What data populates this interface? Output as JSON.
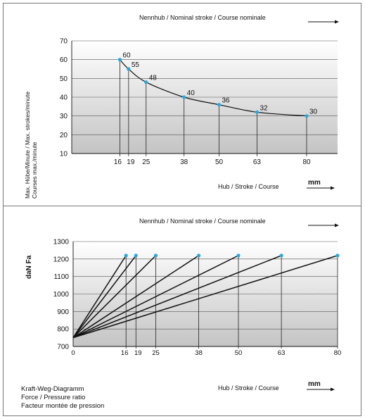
{
  "colors": {
    "point": "#29a8e0",
    "curve": "#111111",
    "grid": "#555555",
    "bg_top": "#ffffff",
    "bg_bottom": "#c8c8c8"
  },
  "labels": {
    "nominal_stroke_top": "Nennhub / Nominal stroke / Course nominale",
    "nominal_stroke_bottom": "Nennhub / Nominal stroke / Course nominale",
    "stroke_top": "Hub / Stroke / Course",
    "stroke_bottom": "Hub / Stroke / Course",
    "unit_top": "mm",
    "unit_bottom": "mm",
    "y_label_top_line1": "Max. Hübe/Minute / Max. strokes/minute",
    "y_label_top_line2": "Courses max./minute",
    "y_label_bottom": "daN  Fa",
    "caption": [
      "Kraft-Weg-Diagramm",
      "Force / Pressure ratio",
      "Facteur montée de pression"
    ]
  },
  "chart_data": [
    {
      "type": "line",
      "ylabel": "Max. Hübe/Minute / Max. strokes/minute / Courses max./minute",
      "xlabel": "Hub / Stroke / Course (mm)",
      "x_ticks": [
        16,
        19,
        25,
        38,
        50,
        63,
        80
      ],
      "y_ticks": [
        10,
        20,
        30,
        40,
        50,
        60,
        70
      ],
      "ylim": [
        10,
        70
      ],
      "x": [
        16,
        19,
        25,
        38,
        50,
        63,
        80
      ],
      "y": [
        60,
        55,
        48,
        40,
        36,
        32,
        30
      ],
      "point_labels": [
        "60",
        "55",
        "48",
        "40",
        "36",
        "32",
        "30"
      ],
      "grid": "horizontal",
      "drop_lines": true
    },
    {
      "type": "line",
      "ylabel": "daN Fa",
      "xlabel": "Hub / Stroke / Course (mm)",
      "x_ticks": [
        0,
        16,
        19,
        25,
        38,
        50,
        63,
        80
      ],
      "y_ticks": [
        700,
        800,
        900,
        1000,
        1100,
        1200,
        1300
      ],
      "ylim": [
        700,
        1300
      ],
      "xlim": [
        0,
        80
      ],
      "origin": [
        0,
        750
      ],
      "end_y": 1220,
      "strokes": [
        16,
        19,
        25,
        38,
        50,
        63,
        80
      ],
      "grid": "horizontal",
      "drop_lines": true
    }
  ]
}
